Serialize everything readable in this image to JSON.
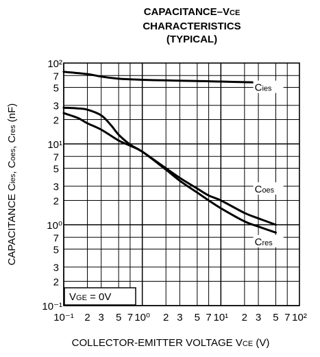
{
  "title_lines": [
    "CAPACITANCE–V",
    "CHARACTERISTICS",
    "(TYPICAL)"
  ],
  "title_sub": "CE",
  "chart_data": {
    "type": "line",
    "xscale": "log",
    "yscale": "log",
    "xlim": [
      0.1,
      100
    ],
    "ylim": [
      0.1,
      100
    ],
    "grid": true,
    "title": "CAPACITANCE–VCE CHARACTERISTICS (TYPICAL)",
    "xlabel": "COLLECTOR-EMITTER VOLTAGE  VCE (V)",
    "ylabel": "CAPACITANCE  Cies, Coes, Cres (nF)",
    "x_tick_labels": [
      "10⁻¹",
      "2",
      "3",
      "5",
      "7",
      "10⁰",
      "2",
      "3",
      "5",
      "7",
      "10¹",
      "2",
      "3",
      "5",
      "7",
      "10²"
    ],
    "y_tick_labels": [
      "10⁻¹",
      "2",
      "3",
      "5",
      "7",
      "10⁰",
      "2",
      "3",
      "5",
      "7",
      "10¹",
      "2",
      "3",
      "5",
      "7",
      "10²"
    ],
    "annotation": "VGE = 0V",
    "series": [
      {
        "name": "Cies",
        "x": [
          0.1,
          0.2,
          0.3,
          0.5,
          0.7,
          1,
          2,
          3,
          5,
          7,
          10,
          20,
          30,
          50
        ],
        "y": [
          78,
          73,
          68,
          64,
          63,
          62,
          61,
          60.5,
          60,
          59.5,
          59,
          58,
          57.5,
          56
        ]
      },
      {
        "name": "Coes",
        "x": [
          0.1,
          0.15,
          0.2,
          0.3,
          0.4,
          0.5,
          0.7,
          1,
          2,
          3,
          5,
          7,
          10,
          20,
          30,
          50
        ],
        "y": [
          28,
          27.5,
          26.5,
          22.5,
          17,
          13,
          9.8,
          8,
          5,
          3.8,
          2.8,
          2.3,
          2.0,
          1.4,
          1.2,
          1.0
        ]
      },
      {
        "name": "Cres",
        "x": [
          0.1,
          0.15,
          0.2,
          0.3,
          0.5,
          0.7,
          1,
          2,
          3,
          5,
          7,
          10,
          20,
          30,
          50
        ],
        "y": [
          24,
          21,
          18,
          15,
          11,
          9.5,
          8,
          4.8,
          3.5,
          2.5,
          2.0,
          1.6,
          1.1,
          0.95,
          0.8
        ]
      }
    ],
    "curve_labels": [
      {
        "base": "C",
        "sub": "ies",
        "x": 28,
        "y": 47
      },
      {
        "base": "C",
        "sub": "oes",
        "x": 28,
        "y": 2.6
      },
      {
        "base": "C",
        "sub": "res",
        "x": 28,
        "y": 0.58
      }
    ],
    "annotation_parts": {
      "base": "V",
      "sub": "GE",
      "rest": " = 0V"
    },
    "xlabel_parts": {
      "base": "COLLECTOR-EMITTER VOLTAGE  V",
      "sub": "CE",
      "rest": " (V)"
    },
    "ylabel_parts": {
      "c1": "CAPACITANCE  C",
      "s1": "ies",
      "c2": ", C",
      "s2": "oes",
      "c3": ", C",
      "s3": "res",
      "c4": " (nF)"
    }
  }
}
